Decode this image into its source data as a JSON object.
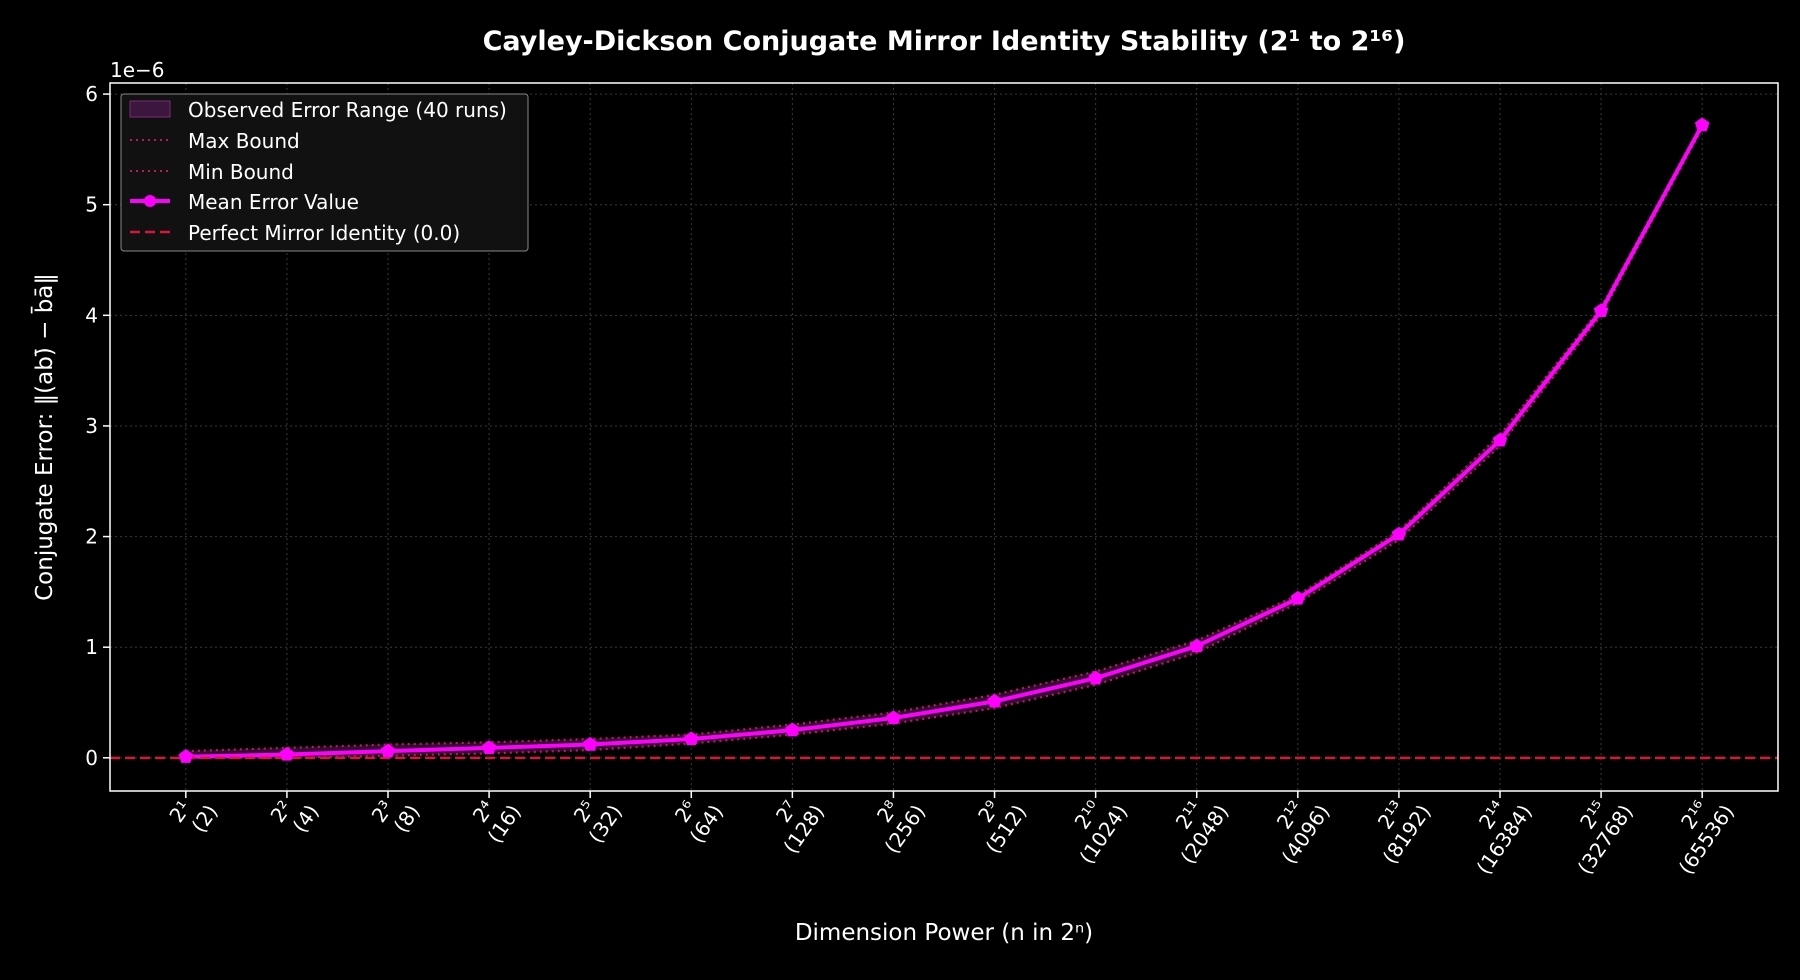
{
  "colors": {
    "background": "#000000",
    "axes_frame": "#ffffff",
    "grid": "#3a3a3a",
    "mean_line": "#ff00ff",
    "bound_line": "#c2185b",
    "reference_line": "#dc143c",
    "range_fill": "#5a1a5a",
    "legend_bg": "#111111",
    "legend_border": "#888888"
  },
  "chart_data": {
    "type": "line",
    "title": "Cayley-Dickson Conjugate Mirror Identity Stability (2¹ to 2¹⁶)",
    "xlabel": "Dimension Power (n in 2ⁿ)",
    "ylabel": "Conjugate Error: ‖(ab)̄ − b̄ā‖",
    "y_offset_label": "1e−6",
    "y_scale": 1e-06,
    "ylim": [
      -0.3,
      6.1
    ],
    "yticks": [
      "0",
      "1",
      "2",
      "3",
      "4",
      "5",
      "6"
    ],
    "grid": true,
    "legend_placement": "upper-left",
    "x": [
      1,
      2,
      3,
      4,
      5,
      6,
      7,
      8,
      9,
      10,
      11,
      12,
      13,
      14,
      15,
      16
    ],
    "xtick_power": [
      "2¹",
      "2²",
      "2³",
      "2⁴",
      "2⁵",
      "2⁶",
      "2⁷",
      "2⁸",
      "2⁹",
      "2¹⁰",
      "2¹¹",
      "2¹²",
      "2¹³",
      "2¹⁴",
      "2¹⁵",
      "2¹⁶"
    ],
    "xtick_dim": [
      "(2)",
      "(4)",
      "(8)",
      "(16)",
      "(32)",
      "(64)",
      "(128)",
      "(256)",
      "(512)",
      "(1024)",
      "(2048)",
      "(4096)",
      "(8192)",
      "(16384)",
      "(32768)",
      "(65536)"
    ],
    "series": [
      {
        "name": "Mean Error Value",
        "style": "solid-markers",
        "values": [
          0.01,
          0.03,
          0.06,
          0.09,
          0.12,
          0.17,
          0.25,
          0.36,
          0.51,
          0.72,
          1.01,
          1.44,
          2.02,
          2.87,
          4.04,
          5.72
        ]
      },
      {
        "name": "Max Bound",
        "style": "dotted",
        "values": [
          0.06,
          0.09,
          0.12,
          0.14,
          0.17,
          0.21,
          0.3,
          0.41,
          0.57,
          0.78,
          1.06,
          1.47,
          2.05,
          2.92,
          4.07,
          5.74
        ]
      },
      {
        "name": "Min Bound",
        "style": "dotted",
        "values": [
          0.0,
          0.0,
          0.02,
          0.04,
          0.07,
          0.13,
          0.21,
          0.31,
          0.45,
          0.66,
          0.95,
          1.4,
          1.97,
          2.82,
          4.0,
          5.69
        ]
      }
    ],
    "range_band_name": "Observed Error Range (40 runs)",
    "reference_line": {
      "name": "Perfect Mirror Identity (0.0)",
      "value": 0.0
    }
  }
}
